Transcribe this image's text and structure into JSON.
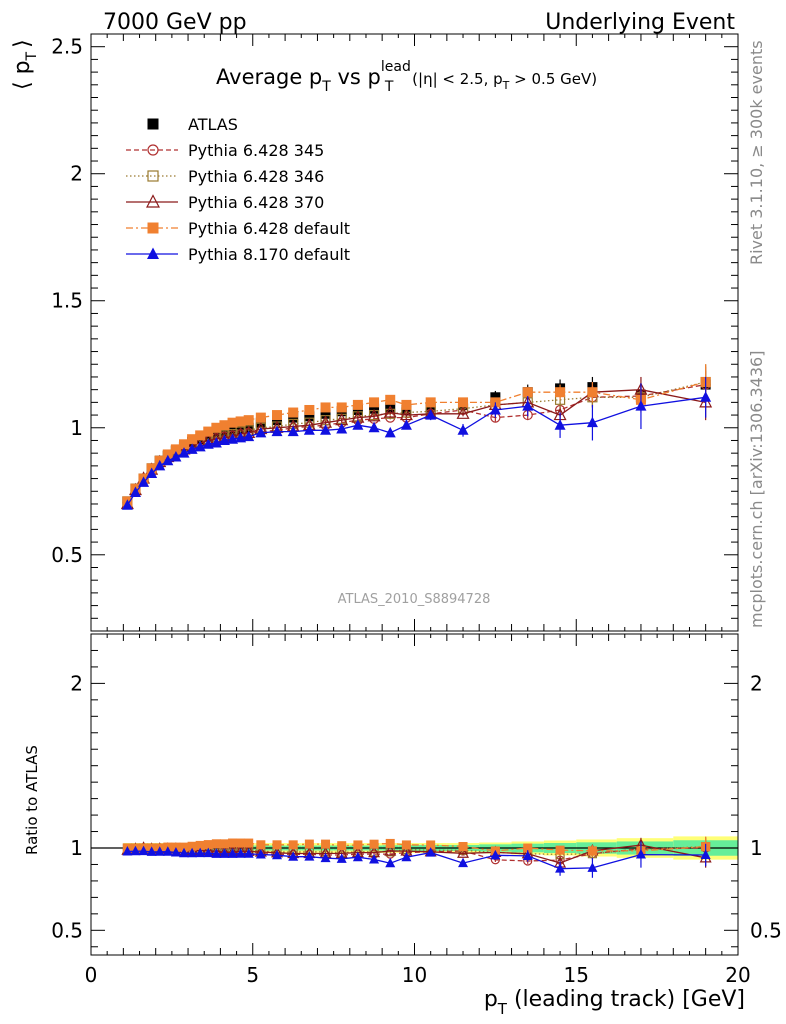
{
  "header": {
    "left": "7000 GeV pp",
    "right": "Underlying Event"
  },
  "side": {
    "rivet": "Rivet 3.1.10, ≥ 300k events",
    "mcplots": "mcplots.cern.ch [arXiv:1306.3436]"
  },
  "chart_data": {
    "type": "scatter",
    "title": {
      "pre": "Average p",
      "sub1": "T",
      "mid": " vs p",
      "sup2": "lead",
      "sub2": "T",
      "cond_a": " (|η| < 2.5, p",
      "cond_sub": "T",
      "cond_b": " > 0.5 GeV)"
    },
    "ylabel": {
      "open": "⟨ p",
      "sub": "T",
      "close": "⟩"
    },
    "xlabel": {
      "pre": "p",
      "sub": "T",
      "post": " (leading track) [GeV]"
    },
    "ratio_ylabel": "Ratio to ATLAS",
    "analysis_id": "ATLAS_2010_S8894728",
    "xlim": [
      0,
      20
    ],
    "ylim": [
      0.2,
      2.55
    ],
    "ratio_ylim": [
      0.35,
      2.3
    ],
    "xticks": [
      "0",
      "5",
      "10",
      "15",
      "20"
    ],
    "xtick_values": [
      0,
      5,
      10,
      15,
      20
    ],
    "yticks": [
      "0.5",
      "1",
      "1.5",
      "2",
      "2.5"
    ],
    "ytick_values": [
      0.5,
      1,
      1.5,
      2,
      2.5
    ],
    "ratio_yticks": [
      "0.5",
      "1",
      "2"
    ],
    "ratio_ytick_values": [
      0.5,
      1,
      2
    ],
    "legend_position": "top-left",
    "x": [
      1.125,
      1.375,
      1.625,
      1.875,
      2.125,
      2.375,
      2.625,
      2.875,
      3.125,
      3.375,
      3.625,
      3.875,
      4.125,
      4.375,
      4.625,
      4.875,
      5.25,
      5.75,
      6.25,
      6.75,
      7.25,
      7.75,
      8.25,
      8.75,
      9.25,
      9.75,
      10.5,
      11.5,
      12.5,
      13.5,
      14.5,
      15.5,
      17.0,
      19.0
    ],
    "series": [
      {
        "name": "ATLAS",
        "color": "#000000",
        "marker": "square-filled",
        "line": "none",
        "values": [
          0.71,
          0.76,
          0.8,
          0.84,
          0.87,
          0.89,
          0.91,
          0.93,
          0.945,
          0.955,
          0.965,
          0.975,
          0.985,
          0.99,
          0.995,
          1.0,
          1.02,
          1.03,
          1.04,
          1.045,
          1.055,
          1.065,
          1.07,
          1.075,
          1.08,
          1.07,
          1.08,
          1.09,
          1.12,
          1.14,
          1.155,
          1.16,
          1.13,
          1.17
        ],
        "errors": [
          0.012,
          0.012,
          0.012,
          0.012,
          0.012,
          0.012,
          0.012,
          0.012,
          0.012,
          0.012,
          0.012,
          0.012,
          0.012,
          0.012,
          0.012,
          0.012,
          0.014,
          0.014,
          0.014,
          0.014,
          0.016,
          0.016,
          0.016,
          0.016,
          0.018,
          0.018,
          0.02,
          0.02,
          0.025,
          0.03,
          0.035,
          0.04,
          0.045,
          0.055
        ]
      },
      {
        "name": "Pythia 6.428 345",
        "color": "#b03030",
        "marker": "circle-open",
        "line": "dashed",
        "values": [
          0.705,
          0.755,
          0.795,
          0.835,
          0.865,
          0.885,
          0.905,
          0.92,
          0.93,
          0.94,
          0.95,
          0.96,
          0.965,
          0.97,
          0.975,
          0.98,
          0.985,
          0.99,
          1.0,
          1.005,
          1.01,
          1.02,
          1.03,
          1.035,
          1.04,
          1.04,
          1.055,
          1.07,
          1.04,
          1.05,
          1.07,
          1.12,
          1.125,
          1.17
        ],
        "errors": [
          0.004,
          0.004,
          0.004,
          0.004,
          0.004,
          0.004,
          0.004,
          0.004,
          0.004,
          0.004,
          0.004,
          0.004,
          0.004,
          0.004,
          0.004,
          0.004,
          0.005,
          0.005,
          0.005,
          0.005,
          0.006,
          0.006,
          0.006,
          0.006,
          0.007,
          0.007,
          0.008,
          0.01,
          0.015,
          0.02,
          0.03,
          0.04,
          0.05,
          0.07
        ]
      },
      {
        "name": "Pythia 6.428 346",
        "color": "#9a7a30",
        "marker": "square-open",
        "line": "dotted",
        "values": [
          0.71,
          0.76,
          0.8,
          0.84,
          0.87,
          0.89,
          0.91,
          0.925,
          0.935,
          0.945,
          0.955,
          0.965,
          0.97,
          0.975,
          0.985,
          0.99,
          1.0,
          1.005,
          1.015,
          1.02,
          1.03,
          1.035,
          1.045,
          1.05,
          1.055,
          1.06,
          1.065,
          1.075,
          1.09,
          1.1,
          1.11,
          1.12,
          1.12,
          1.18
        ],
        "errors": [
          0.004,
          0.004,
          0.004,
          0.004,
          0.004,
          0.004,
          0.004,
          0.004,
          0.004,
          0.004,
          0.004,
          0.004,
          0.004,
          0.004,
          0.004,
          0.004,
          0.005,
          0.005,
          0.005,
          0.005,
          0.006,
          0.006,
          0.006,
          0.006,
          0.007,
          0.007,
          0.008,
          0.01,
          0.015,
          0.02,
          0.03,
          0.04,
          0.05,
          0.07
        ]
      },
      {
        "name": "Pythia 6.428 370",
        "color": "#8b1a1a",
        "marker": "triangle-open",
        "line": "solid",
        "values": [
          0.7,
          0.755,
          0.8,
          0.835,
          0.865,
          0.885,
          0.905,
          0.915,
          0.93,
          0.94,
          0.95,
          0.955,
          0.96,
          0.965,
          0.975,
          0.98,
          0.995,
          1.0,
          1.005,
          1.01,
          1.02,
          1.03,
          1.04,
          1.045,
          1.06,
          1.05,
          1.055,
          1.055,
          1.09,
          1.1,
          1.05,
          1.14,
          1.15,
          1.1
        ],
        "errors": [
          0.004,
          0.004,
          0.004,
          0.004,
          0.004,
          0.004,
          0.004,
          0.004,
          0.004,
          0.004,
          0.004,
          0.004,
          0.004,
          0.004,
          0.004,
          0.004,
          0.005,
          0.005,
          0.005,
          0.005,
          0.006,
          0.006,
          0.006,
          0.006,
          0.007,
          0.007,
          0.008,
          0.01,
          0.015,
          0.02,
          0.03,
          0.04,
          0.05,
          0.07
        ]
      },
      {
        "name": "Pythia 6.428 default",
        "color": "#f08030",
        "marker": "square-filled",
        "line": "dash-dot",
        "values": [
          0.71,
          0.76,
          0.8,
          0.84,
          0.87,
          0.895,
          0.915,
          0.935,
          0.955,
          0.97,
          0.985,
          1.0,
          1.01,
          1.02,
          1.025,
          1.03,
          1.04,
          1.05,
          1.06,
          1.07,
          1.08,
          1.08,
          1.09,
          1.1,
          1.11,
          1.09,
          1.1,
          1.1,
          1.1,
          1.14,
          1.14,
          1.14,
          1.11,
          1.18
        ],
        "errors": [
          0.004,
          0.004,
          0.004,
          0.004,
          0.004,
          0.004,
          0.004,
          0.004,
          0.004,
          0.004,
          0.004,
          0.004,
          0.004,
          0.004,
          0.004,
          0.004,
          0.005,
          0.005,
          0.005,
          0.005,
          0.006,
          0.006,
          0.006,
          0.006,
          0.007,
          0.007,
          0.008,
          0.01,
          0.015,
          0.02,
          0.03,
          0.04,
          0.05,
          0.07
        ]
      },
      {
        "name": "Pythia 8.170 default",
        "color": "#1010e0",
        "marker": "triangle-filled",
        "line": "solid",
        "values": [
          0.695,
          0.745,
          0.785,
          0.82,
          0.85,
          0.87,
          0.885,
          0.9,
          0.915,
          0.925,
          0.935,
          0.94,
          0.95,
          0.955,
          0.96,
          0.965,
          0.98,
          0.985,
          0.985,
          0.99,
          0.99,
          0.995,
          1.01,
          1.0,
          0.98,
          1.01,
          1.05,
          0.99,
          1.07,
          1.085,
          1.01,
          1.02,
          1.085,
          1.12
        ],
        "errors": [
          0.004,
          0.004,
          0.004,
          0.004,
          0.004,
          0.004,
          0.004,
          0.004,
          0.004,
          0.004,
          0.004,
          0.004,
          0.004,
          0.004,
          0.004,
          0.004,
          0.005,
          0.005,
          0.005,
          0.005,
          0.006,
          0.006,
          0.006,
          0.006,
          0.012,
          0.012,
          0.02,
          0.025,
          0.03,
          0.04,
          0.05,
          0.07,
          0.09,
          0.08
        ]
      }
    ],
    "band_colors": {
      "inner": "#66ee99",
      "outer": "#ffff77"
    }
  }
}
